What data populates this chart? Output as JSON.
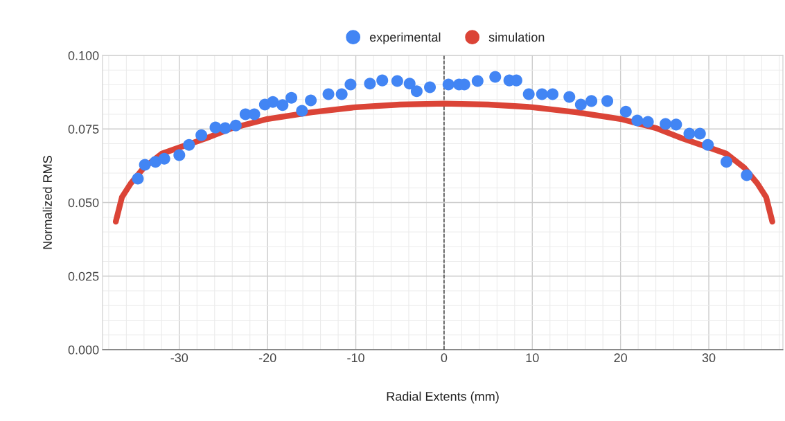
{
  "chart_data": {
    "type": "scatter",
    "xlabel": "Radial Extents (mm)",
    "ylabel": "Normalized RMS",
    "series": [
      {
        "name": "experimental",
        "color": "#4285f4",
        "marker": "circle",
        "x": [
          -34.7,
          -33.9,
          -32.7,
          -31.7,
          -30.0,
          -28.9,
          -27.5,
          -25.9,
          -24.8,
          -23.6,
          -22.5,
          -21.5,
          -20.3,
          -19.4,
          -18.3,
          -17.3,
          -16.1,
          -15.1,
          -13.1,
          -11.6,
          -10.6,
          -8.4,
          -7.0,
          -5.3,
          -3.9,
          -3.1,
          -1.6,
          0.5,
          1.7,
          2.3,
          3.8,
          5.8,
          7.4,
          8.2,
          9.6,
          11.1,
          12.3,
          14.2,
          15.5,
          16.7,
          18.5,
          20.6,
          21.9,
          23.1,
          25.1,
          26.3,
          27.8,
          29.0,
          29.9,
          32.0,
          34.3
        ],
        "values": [
          0.0581,
          0.0628,
          0.0638,
          0.0649,
          0.0661,
          0.0696,
          0.0729,
          0.0755,
          0.0753,
          0.0762,
          0.08,
          0.08,
          0.0833,
          0.0842,
          0.0831,
          0.0856,
          0.0812,
          0.0847,
          0.0868,
          0.0868,
          0.0901,
          0.0904,
          0.0915,
          0.0913,
          0.0904,
          0.0878,
          0.0892,
          0.0901,
          0.0901,
          0.0901,
          0.0913,
          0.0927,
          0.0915,
          0.0915,
          0.0868,
          0.0868,
          0.0868,
          0.0859,
          0.0833,
          0.0845,
          0.0845,
          0.0809,
          0.0779,
          0.0774,
          0.0767,
          0.0765,
          0.0734,
          0.0734,
          0.0696,
          0.0638,
          0.0593
        ]
      },
      {
        "name": "simulation",
        "type": "line",
        "color": "#db4437",
        "marker": "none",
        "line_style": "solid",
        "x": [
          -37.2,
          -36.5,
          -35.5,
          -34,
          -32,
          -30,
          -27,
          -24,
          -20,
          -15,
          -10,
          -5,
          0,
          5,
          10,
          15,
          20,
          24,
          27,
          30,
          32,
          34,
          35.5,
          36.5,
          37.2
        ],
        "values": [
          0.0435,
          0.0518,
          0.0565,
          0.0619,
          0.0666,
          0.0687,
          0.0718,
          0.0753,
          0.0784,
          0.0807,
          0.0824,
          0.0833,
          0.0836,
          0.0833,
          0.0824,
          0.0807,
          0.0784,
          0.0753,
          0.0718,
          0.0687,
          0.0666,
          0.0619,
          0.0565,
          0.0518,
          0.0435
        ]
      }
    ],
    "xlim": [
      -38.7,
      38.4
    ],
    "xticks": [
      -30,
      -20,
      -10,
      0,
      10,
      20,
      30
    ],
    "ylim": [
      0,
      0.1
    ],
    "yticks": [
      {
        "value": 0,
        "label": "0.000"
      },
      {
        "value": 0.025,
        "label": "0.025"
      },
      {
        "value": 0.05,
        "label": "0.050"
      },
      {
        "value": 0.075,
        "label": "0.075"
      },
      {
        "value": 0.1,
        "label": "0.100"
      }
    ],
    "ref_lines": [
      {
        "axis": "x",
        "value": 0,
        "color": "#333333",
        "line_style": "dashed"
      }
    ],
    "grid": true,
    "legend": "top"
  }
}
